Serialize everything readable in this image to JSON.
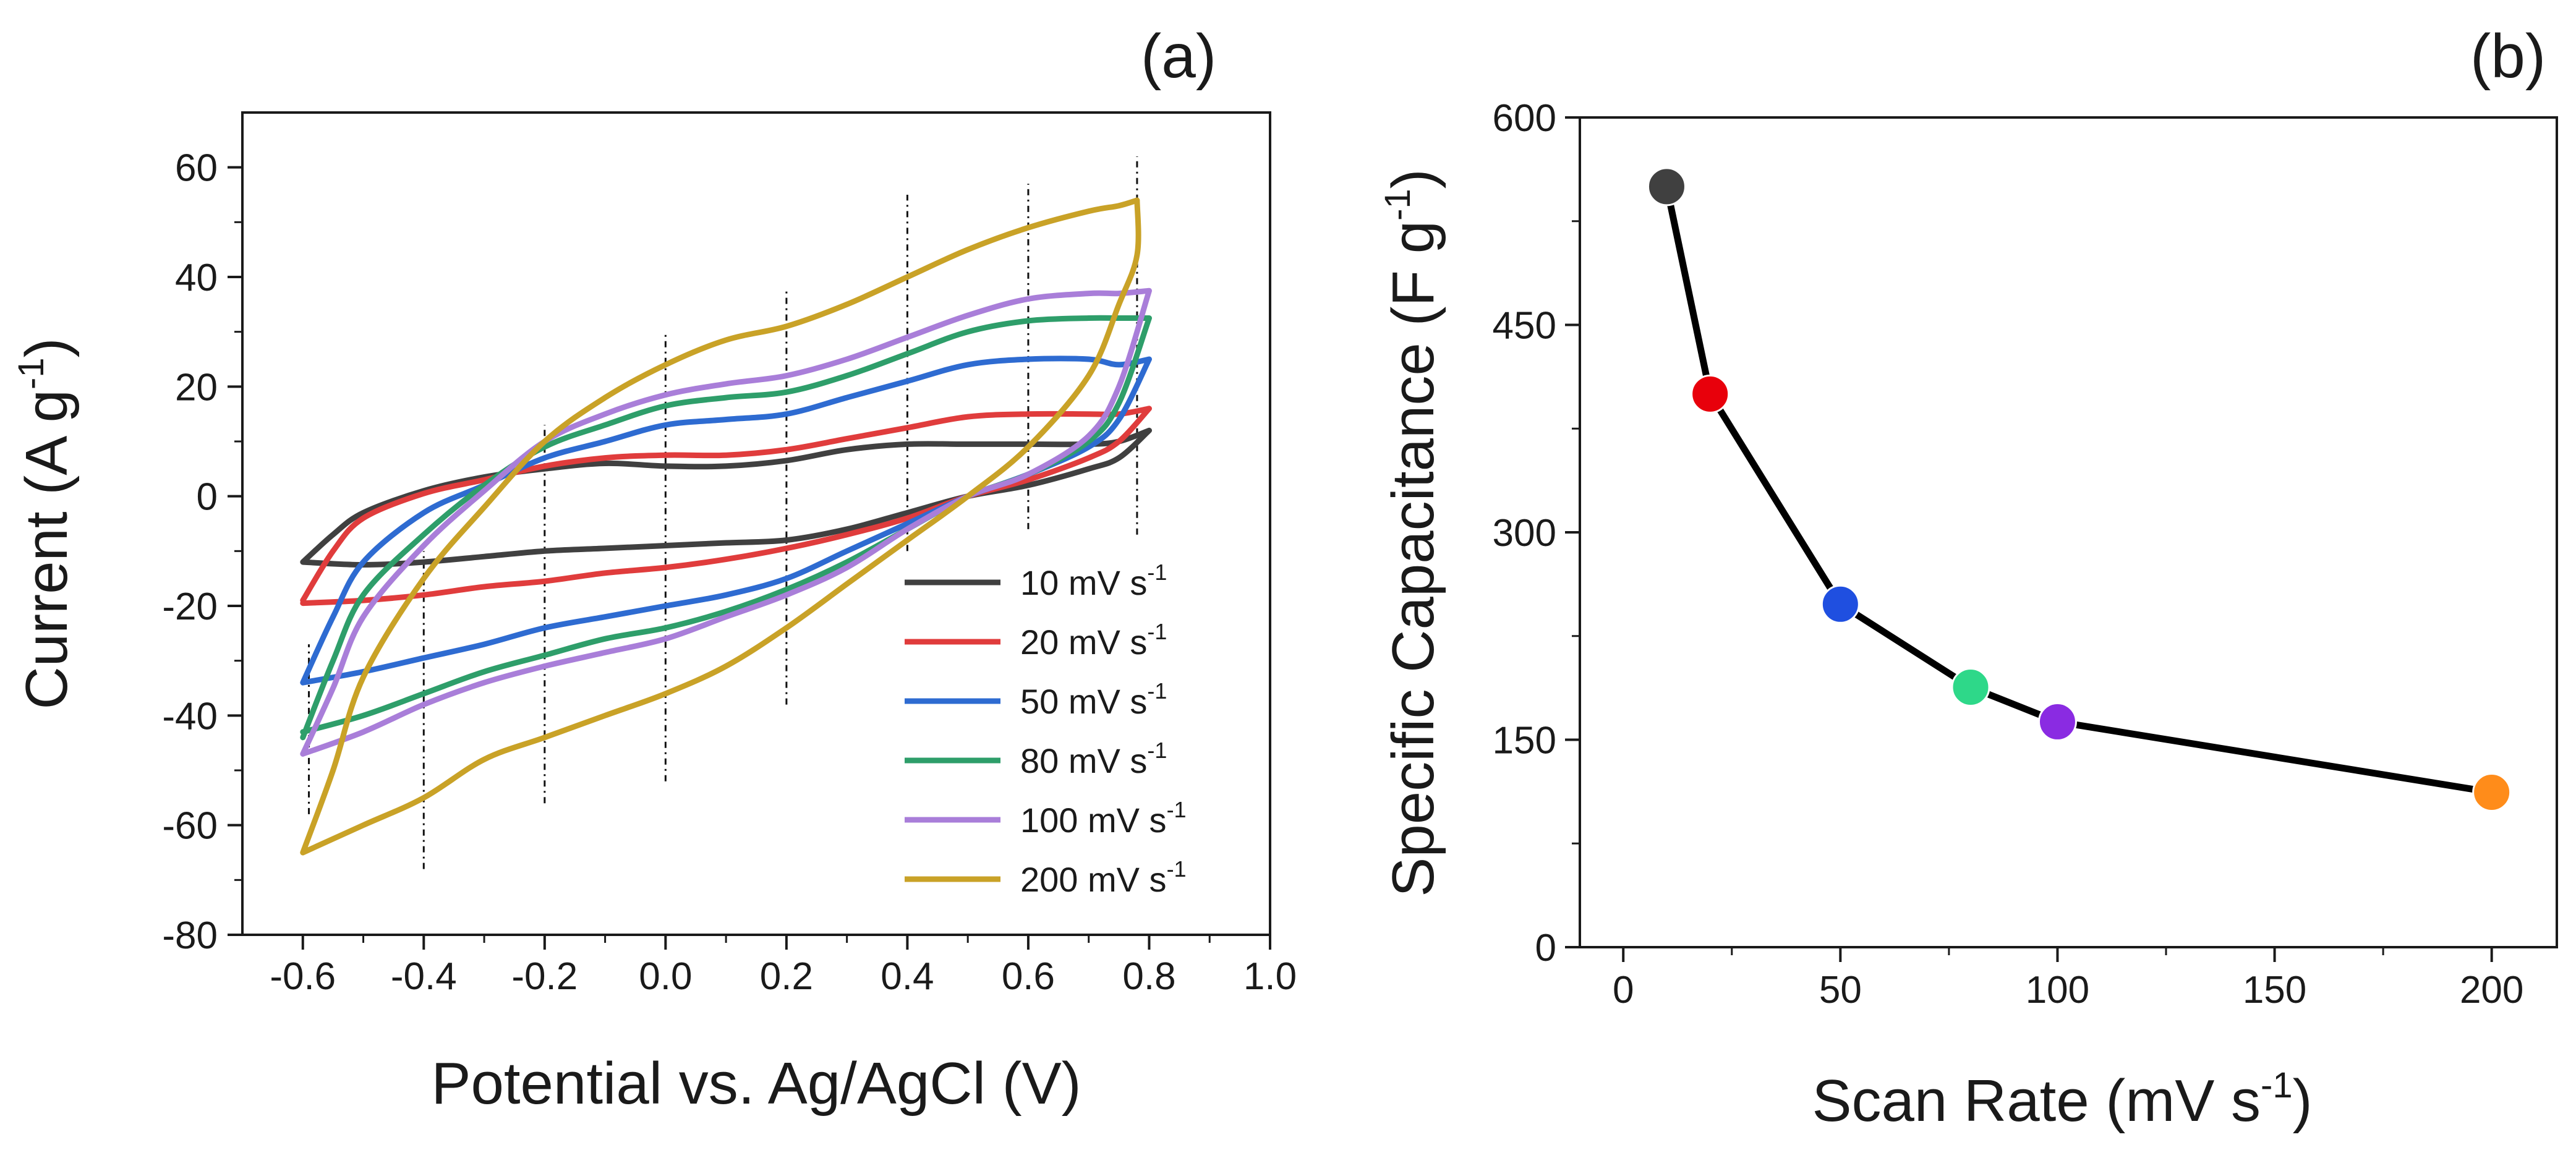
{
  "chart_data": [
    {
      "type": "line",
      "panel_label": "(a)",
      "xlabel": "Potential vs. Ag/AgCl (V)",
      "ylabel_main": "Current (A g",
      "ylabel_sup": "-1",
      "ylabel_end": ")",
      "xlim": [
        -0.7,
        1.0
      ],
      "ylim": [
        -80,
        70
      ],
      "xticks": [
        -0.6,
        -0.4,
        -0.2,
        0.0,
        0.2,
        0.4,
        0.6,
        0.8,
        1.0
      ],
      "xtick_labels": [
        "-0.6",
        "-0.4",
        "-0.2",
        "0.0",
        "0.2",
        "0.4",
        "0.6",
        "0.8",
        "1.0"
      ],
      "yticks": [
        -80,
        -60,
        -40,
        -20,
        0,
        20,
        40,
        60
      ],
      "ytick_labels": [
        "-80",
        "-60",
        "-40",
        "-20",
        "0",
        "20",
        "40",
        "60"
      ],
      "legend_position": "bottom-right",
      "series": [
        {
          "name": "10 mV s-1",
          "label": "10 mV s",
          "sup": "-1",
          "color": "#404040",
          "forward": [
            [
              -0.6,
              -12
            ],
            [
              -0.55,
              -7
            ],
            [
              -0.5,
              -3
            ],
            [
              -0.4,
              1
            ],
            [
              -0.3,
              3.5
            ],
            [
              -0.2,
              5
            ],
            [
              -0.1,
              6
            ],
            [
              0.0,
              5.5
            ],
            [
              0.1,
              5.5
            ],
            [
              0.2,
              6.5
            ],
            [
              0.3,
              8.5
            ],
            [
              0.4,
              9.5
            ],
            [
              0.5,
              9.5
            ],
            [
              0.6,
              9.5
            ],
            [
              0.7,
              9.5
            ],
            [
              0.75,
              10
            ],
            [
              0.8,
              12
            ]
          ],
          "reverse": [
            [
              0.8,
              12
            ],
            [
              0.75,
              7
            ],
            [
              0.7,
              5
            ],
            [
              0.6,
              2
            ],
            [
              0.5,
              0
            ],
            [
              0.4,
              -3
            ],
            [
              0.3,
              -6
            ],
            [
              0.2,
              -8
            ],
            [
              0.1,
              -8.5
            ],
            [
              0.0,
              -9
            ],
            [
              -0.1,
              -9.5
            ],
            [
              -0.2,
              -10
            ],
            [
              -0.3,
              -11
            ],
            [
              -0.4,
              -12
            ],
            [
              -0.5,
              -12.5
            ],
            [
              -0.6,
              -12
            ]
          ]
        },
        {
          "name": "20 mV s-1",
          "label": "20 mV s",
          "sup": "-1",
          "color": "#e03c3c",
          "forward": [
            [
              -0.6,
              -19
            ],
            [
              -0.55,
              -10
            ],
            [
              -0.5,
              -4
            ],
            [
              -0.4,
              0.5
            ],
            [
              -0.3,
              3
            ],
            [
              -0.2,
              5.5
            ],
            [
              -0.1,
              7
            ],
            [
              0.0,
              7.5
            ],
            [
              0.1,
              7.5
            ],
            [
              0.2,
              8.5
            ],
            [
              0.3,
              10.5
            ],
            [
              0.4,
              12.5
            ],
            [
              0.5,
              14.5
            ],
            [
              0.6,
              15
            ],
            [
              0.7,
              15
            ],
            [
              0.75,
              15
            ],
            [
              0.8,
              16
            ]
          ],
          "reverse": [
            [
              0.8,
              16
            ],
            [
              0.75,
              10
            ],
            [
              0.7,
              7
            ],
            [
              0.6,
              3
            ],
            [
              0.5,
              0
            ],
            [
              0.4,
              -4
            ],
            [
              0.3,
              -7
            ],
            [
              0.2,
              -9.5
            ],
            [
              0.1,
              -11.5
            ],
            [
              0.0,
              -13
            ],
            [
              -0.1,
              -14
            ],
            [
              -0.2,
              -15.5
            ],
            [
              -0.3,
              -16.5
            ],
            [
              -0.4,
              -18
            ],
            [
              -0.5,
              -19
            ],
            [
              -0.6,
              -19.5
            ]
          ]
        },
        {
          "name": "50 mV s-1",
          "label": "50 mV s",
          "sup": "-1",
          "color": "#2e6bd1",
          "forward": [
            [
              -0.6,
              -34
            ],
            [
              -0.55,
              -22
            ],
            [
              -0.5,
              -12
            ],
            [
              -0.4,
              -3
            ],
            [
              -0.3,
              2
            ],
            [
              -0.2,
              7
            ],
            [
              -0.1,
              10
            ],
            [
              0.0,
              13
            ],
            [
              0.1,
              14
            ],
            [
              0.2,
              15
            ],
            [
              0.3,
              18
            ],
            [
              0.4,
              21
            ],
            [
              0.5,
              24
            ],
            [
              0.6,
              25
            ],
            [
              0.7,
              25
            ],
            [
              0.75,
              24
            ],
            [
              0.8,
              25
            ]
          ],
          "reverse": [
            [
              0.8,
              25
            ],
            [
              0.75,
              14
            ],
            [
              0.7,
              9
            ],
            [
              0.6,
              4
            ],
            [
              0.5,
              0
            ],
            [
              0.4,
              -5
            ],
            [
              0.3,
              -10
            ],
            [
              0.2,
              -15
            ],
            [
              0.1,
              -18
            ],
            [
              0.0,
              -20
            ],
            [
              -0.1,
              -22
            ],
            [
              -0.2,
              -24
            ],
            [
              -0.3,
              -27
            ],
            [
              -0.4,
              -29.5
            ],
            [
              -0.5,
              -32
            ],
            [
              -0.6,
              -34
            ]
          ]
        },
        {
          "name": "80 mV s-1",
          "label": "80 mV s",
          "sup": "-1",
          "color": "#2e9e6a",
          "forward": [
            [
              -0.6,
              -44
            ],
            [
              -0.55,
              -30
            ],
            [
              -0.5,
              -18
            ],
            [
              -0.4,
              -7
            ],
            [
              -0.3,
              2
            ],
            [
              -0.2,
              9
            ],
            [
              -0.1,
              13
            ],
            [
              0.0,
              16.5
            ],
            [
              0.1,
              18
            ],
            [
              0.2,
              19
            ],
            [
              0.3,
              22
            ],
            [
              0.4,
              26
            ],
            [
              0.5,
              30
            ],
            [
              0.6,
              32
            ],
            [
              0.7,
              32.5
            ],
            [
              0.75,
              32.5
            ],
            [
              0.8,
              32.5
            ]
          ],
          "reverse": [
            [
              0.8,
              32.5
            ],
            [
              0.75,
              17
            ],
            [
              0.7,
              10
            ],
            [
              0.6,
              4
            ],
            [
              0.5,
              0
            ],
            [
              0.4,
              -6
            ],
            [
              0.3,
              -12
            ],
            [
              0.2,
              -17
            ],
            [
              0.1,
              -21
            ],
            [
              0.0,
              -24
            ],
            [
              -0.1,
              -26
            ],
            [
              -0.2,
              -29
            ],
            [
              -0.3,
              -32
            ],
            [
              -0.4,
              -36
            ],
            [
              -0.5,
              -40
            ],
            [
              -0.6,
              -43
            ]
          ]
        },
        {
          "name": "100 mV s-1",
          "label": "100 mV s",
          "sup": "-1",
          "color": "#a97ed9",
          "forward": [
            [
              -0.6,
              -47
            ],
            [
              -0.55,
              -35
            ],
            [
              -0.5,
              -22
            ],
            [
              -0.4,
              -9
            ],
            [
              -0.3,
              1
            ],
            [
              -0.2,
              10
            ],
            [
              -0.1,
              15
            ],
            [
              0.0,
              18.5
            ],
            [
              0.1,
              20.5
            ],
            [
              0.2,
              22
            ],
            [
              0.3,
              25
            ],
            [
              0.4,
              29
            ],
            [
              0.5,
              33
            ],
            [
              0.6,
              36
            ],
            [
              0.7,
              37
            ],
            [
              0.75,
              37
            ],
            [
              0.8,
              37.5
            ]
          ],
          "reverse": [
            [
              0.8,
              37.5
            ],
            [
              0.75,
              20
            ],
            [
              0.7,
              11
            ],
            [
              0.6,
              4
            ],
            [
              0.5,
              0
            ],
            [
              0.4,
              -6
            ],
            [
              0.3,
              -13
            ],
            [
              0.2,
              -18
            ],
            [
              0.1,
              -22
            ],
            [
              0.0,
              -26
            ],
            [
              -0.1,
              -28.5
            ],
            [
              -0.2,
              -31
            ],
            [
              -0.3,
              -34
            ],
            [
              -0.4,
              -38
            ],
            [
              -0.5,
              -43
            ],
            [
              -0.6,
              -47
            ]
          ]
        },
        {
          "name": "200 mV s-1",
          "label": "200 mV s",
          "sup": "-1",
          "color": "#c9a227",
          "forward": [
            [
              -0.6,
              -65
            ],
            [
              -0.55,
              -50
            ],
            [
              -0.5,
              -33
            ],
            [
              -0.4,
              -15
            ],
            [
              -0.3,
              -2
            ],
            [
              -0.2,
              10
            ],
            [
              -0.1,
              18
            ],
            [
              0.0,
              24
            ],
            [
              0.1,
              28.5
            ],
            [
              0.2,
              31
            ],
            [
              0.3,
              35
            ],
            [
              0.4,
              40
            ],
            [
              0.5,
              45
            ],
            [
              0.6,
              49
            ],
            [
              0.7,
              52
            ],
            [
              0.75,
              53
            ],
            [
              0.78,
              54
            ]
          ],
          "reverse": [
            [
              0.78,
              54
            ],
            [
              0.78,
              44
            ],
            [
              0.75,
              35
            ],
            [
              0.7,
              22
            ],
            [
              0.6,
              9
            ],
            [
              0.5,
              0
            ],
            [
              0.4,
              -8
            ],
            [
              0.3,
              -16
            ],
            [
              0.2,
              -24
            ],
            [
              0.1,
              -31
            ],
            [
              0.0,
              -36
            ],
            [
              -0.1,
              -40
            ],
            [
              -0.2,
              -44
            ],
            [
              -0.3,
              -48
            ],
            [
              -0.4,
              -55
            ],
            [
              -0.5,
              -60
            ],
            [
              -0.6,
              -65
            ]
          ]
        }
      ],
      "dashed_markers": [
        {
          "x": -0.59,
          "y1": -58,
          "y2": -27
        },
        {
          "x": -0.4,
          "y1": -68,
          "y2": -10
        },
        {
          "x": -0.2,
          "y1": -56,
          "y2": 13
        },
        {
          "x": 0.0,
          "y1": -52,
          "y2": 30
        },
        {
          "x": 0.2,
          "y1": -38,
          "y2": 38
        },
        {
          "x": 0.4,
          "y1": -10,
          "y2": 55
        },
        {
          "x": 0.6,
          "y1": -6,
          "y2": 57
        },
        {
          "x": 0.78,
          "y1": -7,
          "y2": 62
        }
      ]
    },
    {
      "type": "line",
      "panel_label": "(b)",
      "xlabel_main": "Scan Rate (mV s",
      "xlabel_sup": "-1",
      "xlabel_end": ")",
      "ylabel_main": "Specific Capacitance (F g",
      "ylabel_sup": "-1",
      "ylabel_end": ")",
      "xlim": [
        -10,
        215
      ],
      "ylim": [
        0,
        600
      ],
      "xticks": [
        0,
        50,
        100,
        150,
        200
      ],
      "xtick_labels": [
        "0",
        "50",
        "100",
        "150",
        "200"
      ],
      "yticks": [
        0,
        150,
        300,
        450,
        600
      ],
      "ytick_labels": [
        "0",
        "150",
        "300",
        "450",
        "600"
      ],
      "x": [
        10,
        20,
        50,
        80,
        100,
        200
      ],
      "values": [
        550,
        400,
        248,
        188,
        163,
        112
      ],
      "point_colors": [
        "#404040",
        "#e8000b",
        "#1f4fe0",
        "#2ed889",
        "#8a2be2",
        "#ff8c1a"
      ]
    }
  ]
}
